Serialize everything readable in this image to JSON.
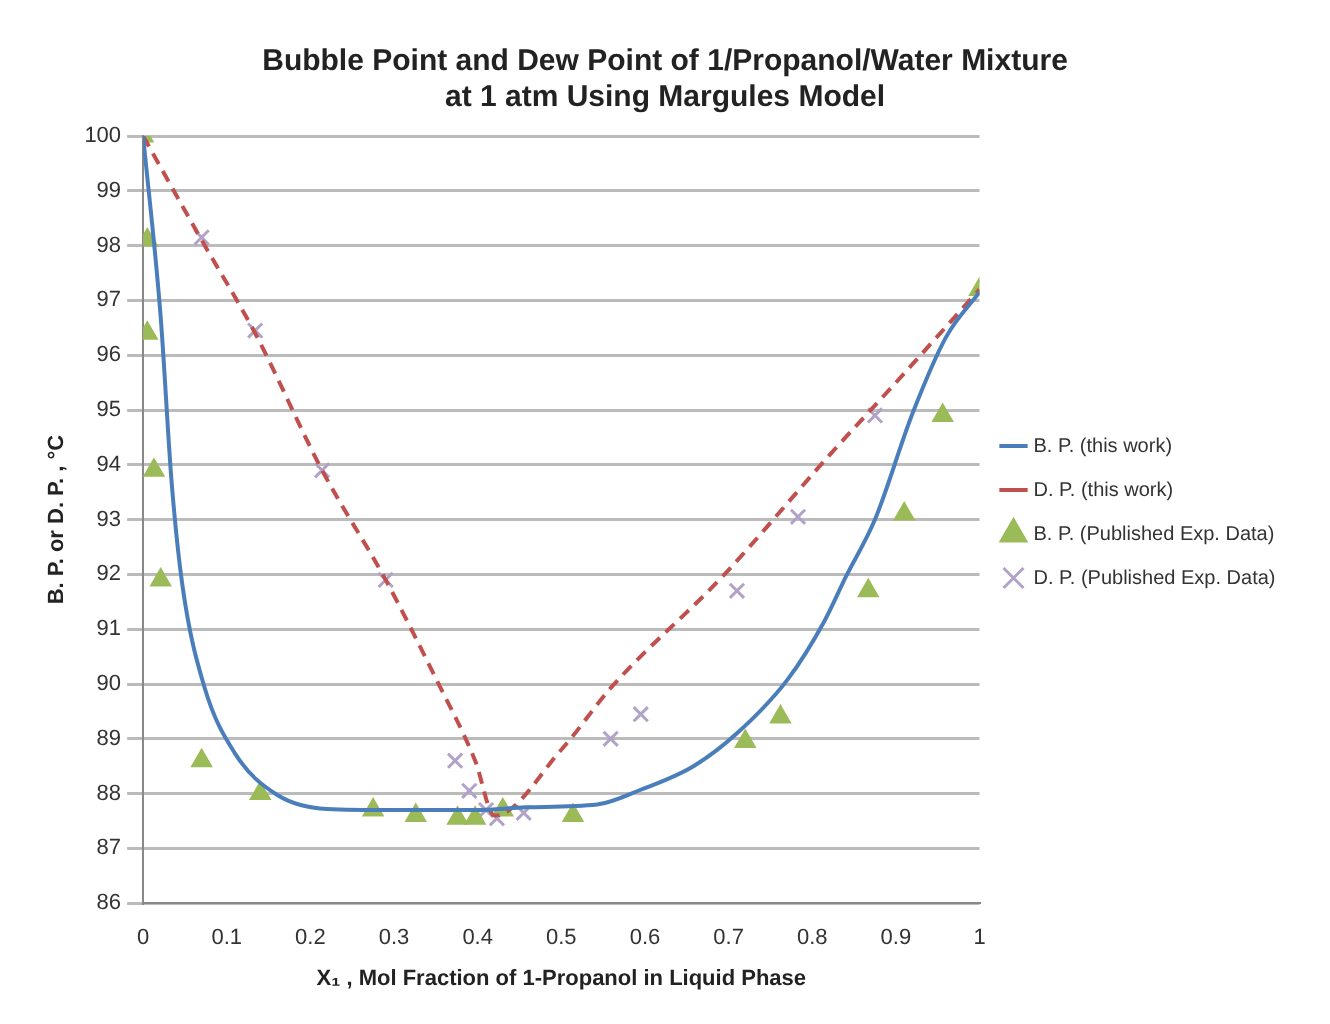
{
  "chart_data": {
    "type": "line",
    "title": "Bubble Point and Dew Point of 1/Propanol/Water Mixture\nat 1 atm Using Margules Model",
    "xlabel": "X₁ , Mol Fraction of 1-Propanol in Liquid Phase",
    "ylabel": "B. P. or D. P. , °C",
    "xlim": [
      0,
      1
    ],
    "xticks": [
      0,
      0.1,
      0.2,
      0.3,
      0.4,
      0.5,
      0.6,
      0.7,
      0.8,
      0.9,
      1
    ],
    "ylim": [
      86,
      100
    ],
    "yticks": [
      86,
      87,
      88,
      89,
      90,
      91,
      92,
      93,
      94,
      95,
      96,
      97,
      98,
      99,
      100
    ],
    "grid": "y",
    "legend": "right",
    "series": [
      {
        "name": "B. P. (this work)",
        "type": "line",
        "color": "#4a7ebb",
        "line_style": "solid",
        "marker": "none",
        "x": [
          0,
          0.021,
          0.034,
          0.047,
          0.073,
          0.11,
          0.16,
          0.22,
          0.3,
          0.4,
          0.457,
          0.543,
          0.595,
          0.658,
          0.71,
          0.77,
          0.815,
          0.84,
          0.875,
          0.92,
          0.96,
          1
        ],
        "values": [
          100,
          96.7,
          93.7,
          91.8,
          89.96,
          88.73,
          87.98,
          87.72,
          87.7,
          87.7,
          87.75,
          87.8,
          88.07,
          88.5,
          89.1,
          90.07,
          91.16,
          91.95,
          93,
          94.94,
          96.33,
          97.15
        ]
      },
      {
        "name": "D. P. (this work)",
        "type": "line",
        "color": "#c0504d",
        "line_style": "dashed",
        "marker": "none",
        "x": [
          0,
          0.07,
          0.134,
          0.214,
          0.29,
          0.35,
          0.397,
          0.42,
          0.5,
          0.561,
          0.692,
          0.822,
          0.9,
          1
        ],
        "values": [
          100,
          98.1,
          96.4,
          93.9,
          91.9,
          90.1,
          88.6,
          87.6,
          88.8,
          89.96,
          91.95,
          94.2,
          95.5,
          97.2
        ]
      },
      {
        "name": "B. P. (Published Exp. Data)",
        "type": "scatter",
        "color": "#9bbb59",
        "marker": "triangle",
        "x": [
          0,
          0.005,
          0.005,
          0.013,
          0.021,
          0.07,
          0.14,
          0.275,
          0.326,
          0.376,
          0.397,
          0.43,
          0.514,
          0.72,
          0.762,
          0.867,
          0.91,
          0.956,
          1
        ],
        "values": [
          100,
          98.1,
          96.4,
          93.9,
          91.9,
          88.6,
          88,
          87.7,
          87.6,
          87.55,
          87.55,
          87.7,
          87.6,
          88.95,
          89.4,
          91.7,
          93.1,
          94.9,
          97.2
        ]
      },
      {
        "name": "D. P. (Published Exp. Data)",
        "type": "scatter",
        "color": "#b3a2c7",
        "marker": "cross",
        "x": [
          0.07,
          0.134,
          0.214,
          0.29,
          0.373,
          0.39,
          0.41,
          0.423,
          0.455,
          0.559,
          0.595,
          0.71,
          0.783,
          0.875
        ],
        "values": [
          98.15,
          96.45,
          93.9,
          91.9,
          88.6,
          88.05,
          87.7,
          87.55,
          87.65,
          89,
          89.45,
          91.7,
          93.05,
          94.9
        ]
      }
    ]
  }
}
